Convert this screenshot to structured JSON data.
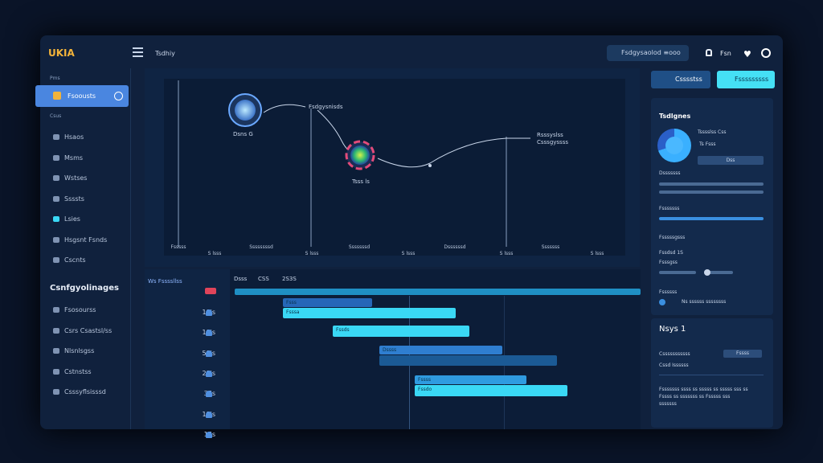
{
  "app": {
    "logo": "UKIA",
    "page_title": "Tsdhiy",
    "search": "Fsdgysaolod ≡ooo",
    "user": "Fsn"
  },
  "sidebar": {
    "section_1": "Pms",
    "active_item": "Fsoousts",
    "section_2": "Csus",
    "items": [
      "Hsaos",
      "Msms",
      "Wstses",
      "Ssssts",
      "Lsies",
      "Hsgsnt Fsnds",
      "Cscnts"
    ],
    "heading": "Csnfgyolinages",
    "sub_items": [
      "Fsosourss",
      "Csrs Csastsl/ss",
      "Nlsnlsgss",
      "Cstnstss",
      "Csssyflsisssd"
    ]
  },
  "graph": {
    "nodes": [
      "Dsns G",
      "Fsdgysnisds",
      "Tsss ls",
      "Rsssyslss",
      "Csssgyssss"
    ],
    "axis_labels": [
      "Fsssss",
      "S lsss",
      "Ssssssssd",
      "S lsss",
      "Sssssssd",
      "S lsss",
      "Dssssssd",
      "S lsss",
      "Sssssss",
      "S lsss"
    ]
  },
  "timeline": {
    "header": "Ws Fssssllss",
    "columns": [
      "Dsss",
      "CSS",
      "2S3S"
    ],
    "rows": [
      "1Sis",
      "1Sis",
      "5Sis",
      "2Sis",
      "3Ss",
      "1Sis",
      "1Ss"
    ],
    "bars": [
      "Fsss",
      "Fsssa",
      "Fssds",
      "Dssss",
      "Fssss",
      "Fssdo"
    ]
  },
  "right_panel": {
    "buttons": [
      "Csssstss",
      "Fsssssssss"
    ],
    "card_title": "Tsdlgnes",
    "legend": [
      "Tsssslss Css",
      "Ts Fsss"
    ],
    "card_button": "Dss",
    "labels": [
      "Dsssssss",
      "Fsssssss",
      "Fsssssgsss",
      "Fssdsd 1S",
      "Fsssgss",
      "Fssssss",
      "Ns ssssss ssssssss"
    ],
    "section_title": "Nsys 1",
    "rows": [
      "Csssssssssss",
      "Cssd Issssss"
    ],
    "row_button": "Fssss",
    "paragraph": "Fsssssss ssss ss sssss ss sssss sss ss Fssss ss sssssss ss Fsssss sss sssssss"
  }
}
